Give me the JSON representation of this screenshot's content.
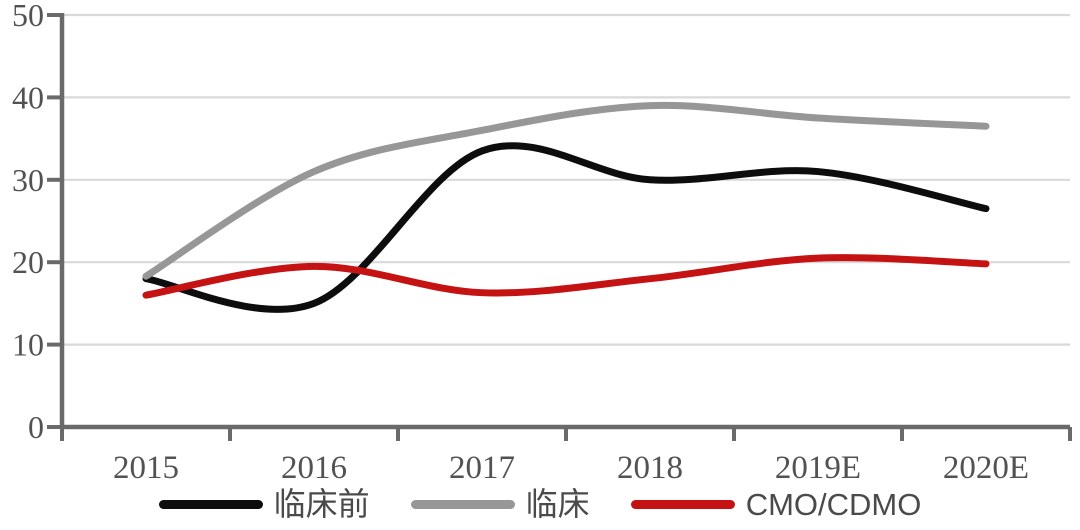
{
  "chart_data": {
    "type": "line",
    "title": "",
    "xlabel": "",
    "ylabel": "",
    "categories": [
      "2015",
      "2016",
      "2017",
      "2018",
      "2019E",
      "2020E"
    ],
    "series": [
      {
        "name": "临床前",
        "color": "#0d0d0d",
        "values": [
          18,
          15,
          33.5,
          30,
          31,
          26.5
        ]
      },
      {
        "name": "临床",
        "color": "#979797",
        "values": [
          18.3,
          31,
          36,
          39,
          37.5,
          36.5
        ]
      },
      {
        "name": "CMO/CDMO",
        "color": "#c51212",
        "values": [
          16,
          19.5,
          16.3,
          18,
          20.5,
          19.8
        ]
      }
    ],
    "ylim": [
      0,
      50
    ],
    "yticks": [
      0,
      10,
      20,
      30,
      40,
      50
    ],
    "grid": true,
    "legend_position": "bottom"
  },
  "styles": {
    "background": "#ffffff",
    "grid_color": "#d9d9d9",
    "axis_color": "#6a6a6a",
    "tick_label_color": "#525252",
    "legend_text_color": "#4a4a4a"
  }
}
